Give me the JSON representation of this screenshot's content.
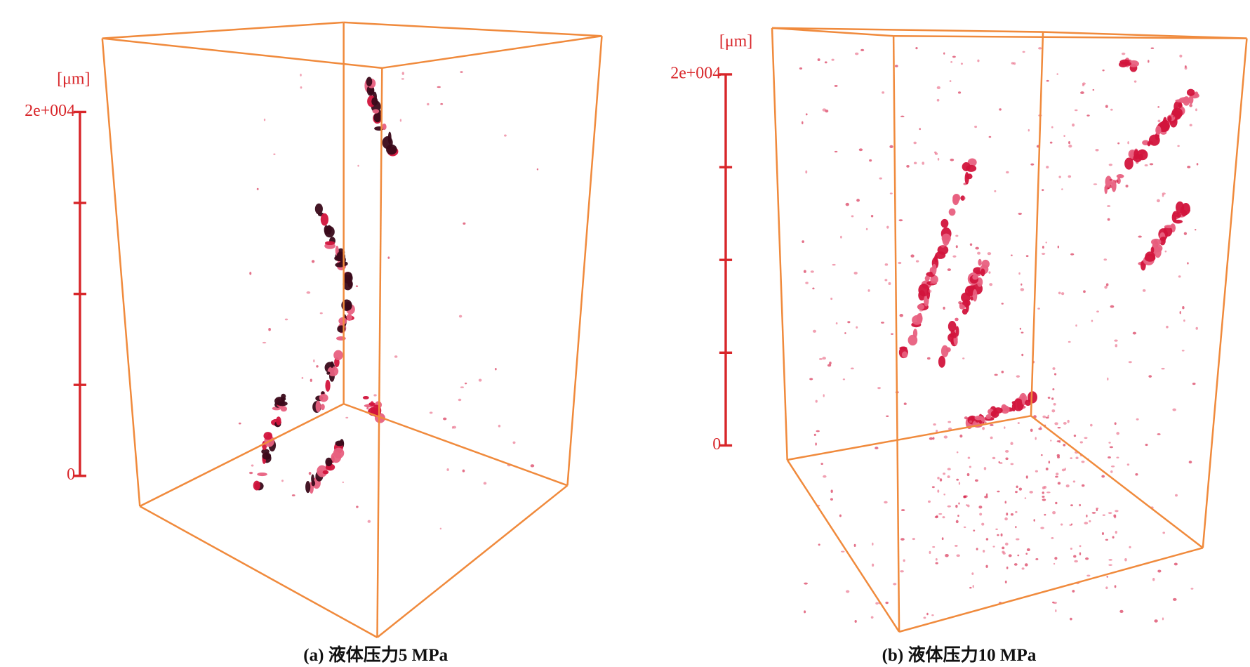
{
  "panels": [
    {
      "caption": "(a) 液体压力5 MPa",
      "scale": {
        "unit": "[μm]",
        "range": [
          0,
          20000
        ],
        "ticks": [
          0,
          {
            "value": 20000,
            "label": "2e+004"
          }
        ],
        "minor_ticks": [
          5000,
          10000,
          15000
        ]
      }
    },
    {
      "caption": "(b) 液体压力10 MPa",
      "scale": {
        "unit": "[μm]",
        "range": [
          0,
          20000
        ],
        "ticks": [
          0,
          {
            "value": 20000,
            "label": "2e+004"
          }
        ],
        "minor_ticks": [
          5000,
          10000,
          15000
        ]
      }
    }
  ]
}
